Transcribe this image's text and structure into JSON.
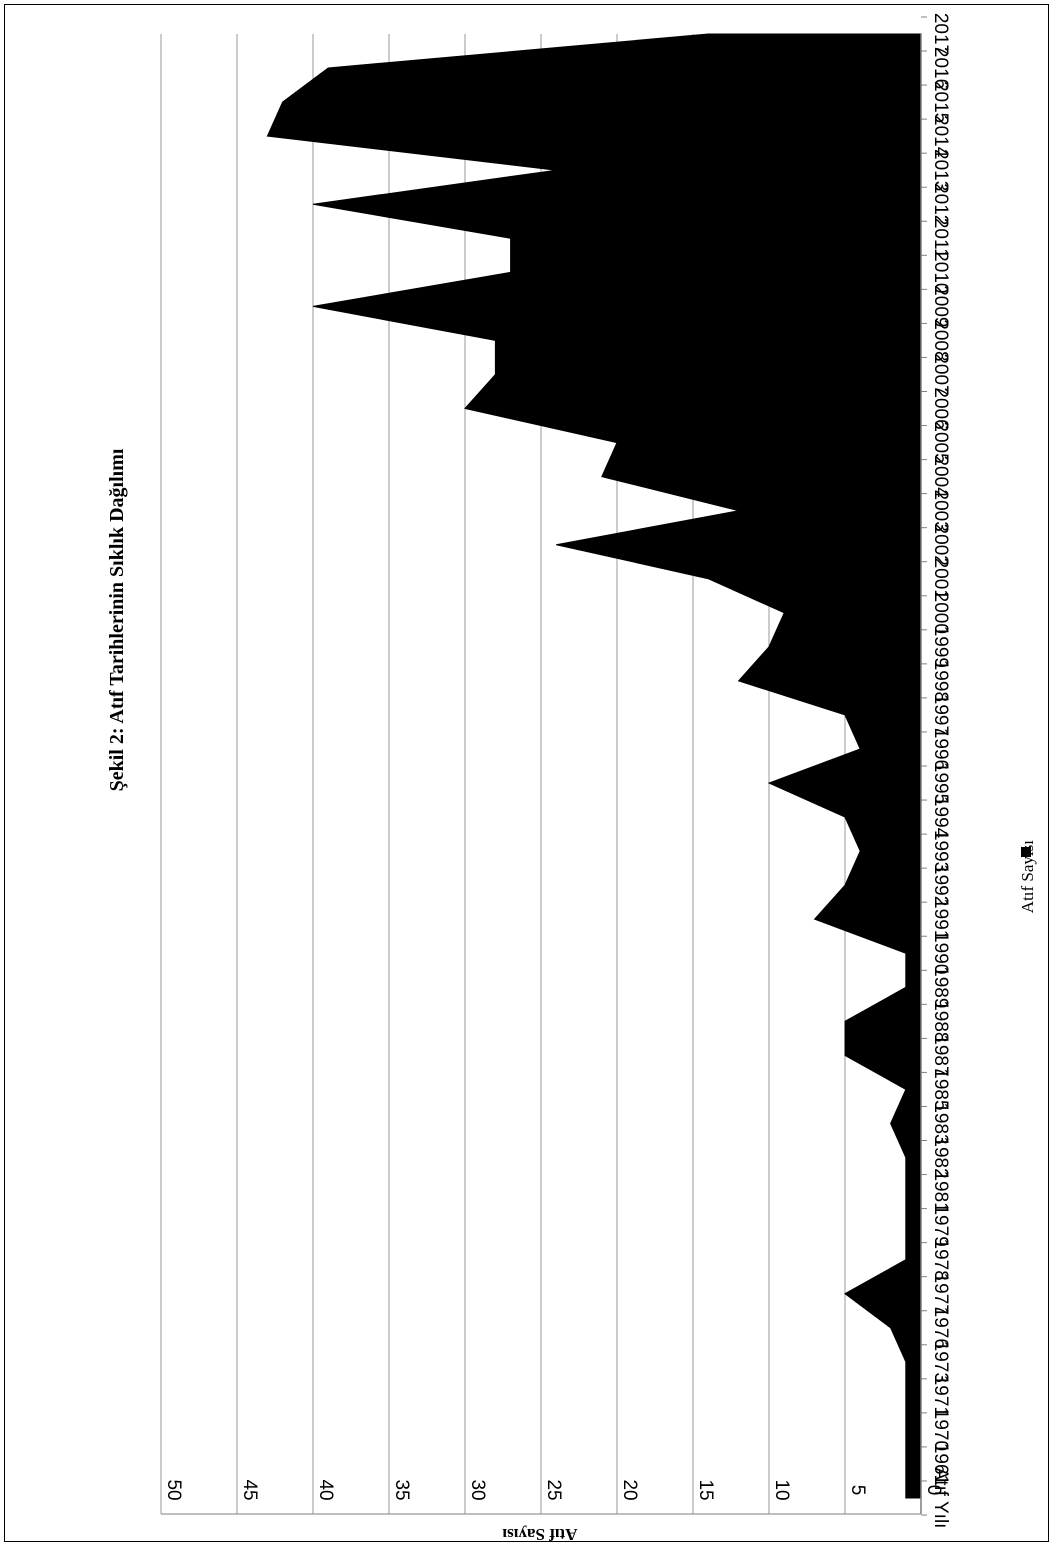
{
  "chart_data": {
    "type": "area",
    "title": "Şekil 2: Atıf Tarihlerinin Sıklık Dağılımı",
    "xlabel": "Atıf Yılı",
    "ylabel": "Atıf Sayısı",
    "ylim": [
      0,
      50
    ],
    "yticks": [
      0,
      5,
      10,
      15,
      20,
      25,
      30,
      35,
      40,
      45,
      50
    ],
    "grid": true,
    "legend_position": "bottom",
    "categories": [
      "Atıf Yılı",
      "1961",
      "1970",
      "1971",
      "1973",
      "1976",
      "1977",
      "1978",
      "1979",
      "1981",
      "1982",
      "1983",
      "1985",
      "1987",
      "1988",
      "1989",
      "1990",
      "1991",
      "1992",
      "1993",
      "1994",
      "1995",
      "1996",
      "1997",
      "1998",
      "1999",
      "2000",
      "2001",
      "2002",
      "2003",
      "2004",
      "2005",
      "2006",
      "2007",
      "2008",
      "2009",
      "2010",
      "2011",
      "2012",
      "2013",
      "2014",
      "2015",
      "2016",
      "2017"
    ],
    "series": [
      {
        "name": "Atıf Sayısı",
        "color": "#000000",
        "values": [
          1,
          1,
          1,
          1,
          1,
          2,
          5,
          1,
          1,
          1,
          1,
          2,
          1,
          5,
          5,
          1,
          1,
          7,
          5,
          4,
          5,
          10,
          4,
          5,
          12,
          10,
          9,
          14,
          24,
          12,
          21,
          20,
          30,
          28,
          28,
          40,
          27,
          27,
          40,
          24,
          43,
          42,
          39,
          14
        ]
      }
    ]
  }
}
